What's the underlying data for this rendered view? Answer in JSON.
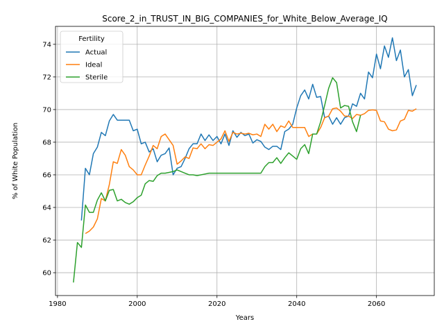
{
  "chart_data": {
    "type": "line",
    "title": "Score_2_in_TRUST_IN_BIG_COMPANIES_for_White_Below_Average_IQ",
    "xlabel": "Years",
    "ylabel": "% of White Population",
    "xlim": [
      1979.5,
      2074.5
    ],
    "ylim": [
      58.6,
      75.1
    ],
    "xticks": [
      1980,
      2000,
      2020,
      2040,
      2060
    ],
    "yticks": [
      60,
      62,
      64,
      66,
      68,
      70,
      72,
      74
    ],
    "grid": true,
    "legend": {
      "title": "Fertility",
      "placement": "upper-left"
    },
    "series": [
      {
        "name": "Actual",
        "color": "#1f77b4",
        "x": [
          1986,
          1987,
          1988,
          1989,
          1990,
          1991,
          1992,
          1993,
          1994,
          1995,
          1996,
          1997,
          1998,
          1999,
          2000,
          2001,
          2002,
          2003,
          2004,
          2005,
          2006,
          2007,
          2008,
          2009,
          2010,
          2011,
          2012,
          2013,
          2014,
          2015,
          2016,
          2017,
          2018,
          2019,
          2020,
          2021,
          2022,
          2023,
          2024,
          2025,
          2026,
          2027,
          2028,
          2029,
          2030,
          2031,
          2032,
          2033,
          2034,
          2035,
          2036,
          2037,
          2038,
          2039,
          2040,
          2041,
          2042,
          2043,
          2044,
          2045,
          2046,
          2047,
          2048,
          2049,
          2050,
          2051,
          2052,
          2053,
          2054,
          2055,
          2056,
          2057,
          2058,
          2059,
          2060,
          2061,
          2062,
          2063,
          2064,
          2065,
          2066,
          2067,
          2068,
          2069,
          2070
        ],
        "values": [
          63.2,
          66.4,
          66.0,
          67.3,
          67.7,
          68.6,
          68.4,
          69.3,
          69.7,
          69.35,
          69.35,
          69.35,
          69.35,
          68.7,
          68.8,
          67.9,
          68.0,
          67.4,
          67.6,
          66.8,
          67.2,
          67.3,
          67.65,
          66.0,
          66.4,
          66.5,
          67.0,
          67.6,
          67.9,
          67.9,
          68.5,
          68.1,
          68.45,
          68.1,
          68.35,
          67.9,
          68.5,
          67.8,
          68.7,
          68.3,
          68.6,
          68.4,
          68.5,
          67.95,
          68.15,
          68.05,
          67.7,
          67.55,
          67.75,
          67.75,
          67.55,
          68.65,
          68.8,
          69.1,
          70.1,
          70.85,
          71.2,
          70.65,
          71.55,
          70.75,
          70.8,
          69.5,
          69.6,
          69.1,
          69.5,
          69.1,
          69.5,
          69.6,
          70.35,
          70.2,
          71.0,
          70.65,
          72.3,
          71.95,
          73.4,
          72.5,
          73.9,
          73.2,
          74.4,
          73.0,
          73.65,
          72.0,
          72.45,
          70.85,
          71.5
        ]
      },
      {
        "name": "Ideal",
        "color": "#ff7f0e",
        "x": [
          1987,
          1988,
          1989,
          1990,
          1991,
          1992,
          1993,
          1994,
          1995,
          1996,
          1997,
          1998,
          1999,
          2000,
          2001,
          2002,
          2003,
          2004,
          2005,
          2006,
          2007,
          2008,
          2009,
          2010,
          2011,
          2012,
          2013,
          2014,
          2015,
          2016,
          2017,
          2018,
          2019,
          2020,
          2021,
          2022,
          2023,
          2024,
          2025,
          2026,
          2027,
          2028,
          2029,
          2030,
          2031,
          2032,
          2033,
          2034,
          2035,
          2036,
          2037,
          2038,
          2039,
          2040,
          2041,
          2042,
          2043,
          2044,
          2045,
          2046,
          2047,
          2048,
          2049,
          2050,
          2051,
          2052,
          2053,
          2054,
          2055,
          2056,
          2057,
          2058,
          2059,
          2060,
          2061,
          2062,
          2063,
          2064,
          2065,
          2066,
          2067,
          2068,
          2069,
          2070
        ],
        "values": [
          62.4,
          62.55,
          62.8,
          63.3,
          64.55,
          64.4,
          65.4,
          66.8,
          66.7,
          67.55,
          67.2,
          66.5,
          66.3,
          66.0,
          66.0,
          66.6,
          67.15,
          67.8,
          67.6,
          68.35,
          68.5,
          68.15,
          67.8,
          66.65,
          66.85,
          67.1,
          67.0,
          67.65,
          67.6,
          67.9,
          67.6,
          67.85,
          67.8,
          68.0,
          68.2,
          68.7,
          68.05,
          68.6,
          68.5,
          68.55,
          68.5,
          68.55,
          68.45,
          68.5,
          68.35,
          69.1,
          68.8,
          69.1,
          68.65,
          69.0,
          68.9,
          69.3,
          68.9,
          68.9,
          68.9,
          68.9,
          68.35,
          68.5,
          68.5,
          68.9,
          69.5,
          69.6,
          70.05,
          70.1,
          69.9,
          69.6,
          69.6,
          69.45,
          69.7,
          69.65,
          69.75,
          69.95,
          69.98,
          69.95,
          69.3,
          69.25,
          68.8,
          68.7,
          68.75,
          69.3,
          69.4,
          69.95,
          69.9,
          70.05
        ]
      },
      {
        "name": "Sterile",
        "color": "#2ca02c",
        "x": [
          1984,
          1985,
          1986,
          1987,
          1988,
          1989,
          1990,
          1991,
          1992,
          1993,
          1994,
          1995,
          1996,
          1997,
          1998,
          1999,
          2000,
          2001,
          2002,
          2003,
          2004,
          2005,
          2006,
          2007,
          2008,
          2009,
          2010,
          2011,
          2012,
          2013,
          2014,
          2015,
          2016,
          2017,
          2018,
          2019,
          2020,
          2021,
          2022,
          2023,
          2024,
          2025,
          2026,
          2027,
          2028,
          2029,
          2030,
          2031,
          2032,
          2033,
          2034,
          2035,
          2036,
          2037,
          2038,
          2039,
          2040,
          2041,
          2042,
          2043,
          2044,
          2045,
          2046,
          2047,
          2048,
          2049,
          2050,
          2051,
          2052,
          2053,
          2054,
          2055,
          2056
        ],
        "values": [
          59.4,
          61.85,
          61.55,
          64.15,
          63.7,
          63.7,
          64.45,
          64.9,
          64.4,
          65.05,
          65.1,
          64.4,
          64.5,
          64.3,
          64.2,
          64.35,
          64.6,
          64.75,
          65.45,
          65.65,
          65.6,
          65.95,
          66.1,
          66.1,
          66.15,
          66.2,
          66.3,
          66.2,
          66.1,
          66.0,
          66.0,
          65.95,
          66.0,
          66.05,
          66.1,
          66.1,
          66.1,
          66.1,
          66.1,
          66.1,
          66.1,
          66.1,
          66.1,
          66.1,
          66.1,
          66.1,
          66.1,
          66.1,
          66.5,
          66.75,
          66.75,
          67.05,
          66.7,
          67.05,
          67.35,
          67.15,
          66.95,
          67.6,
          67.85,
          67.3,
          68.5,
          68.5,
          69.25,
          70.25,
          71.3,
          71.95,
          71.65,
          70.1,
          70.25,
          70.2,
          69.25,
          68.65,
          69.65
        ]
      }
    ]
  }
}
